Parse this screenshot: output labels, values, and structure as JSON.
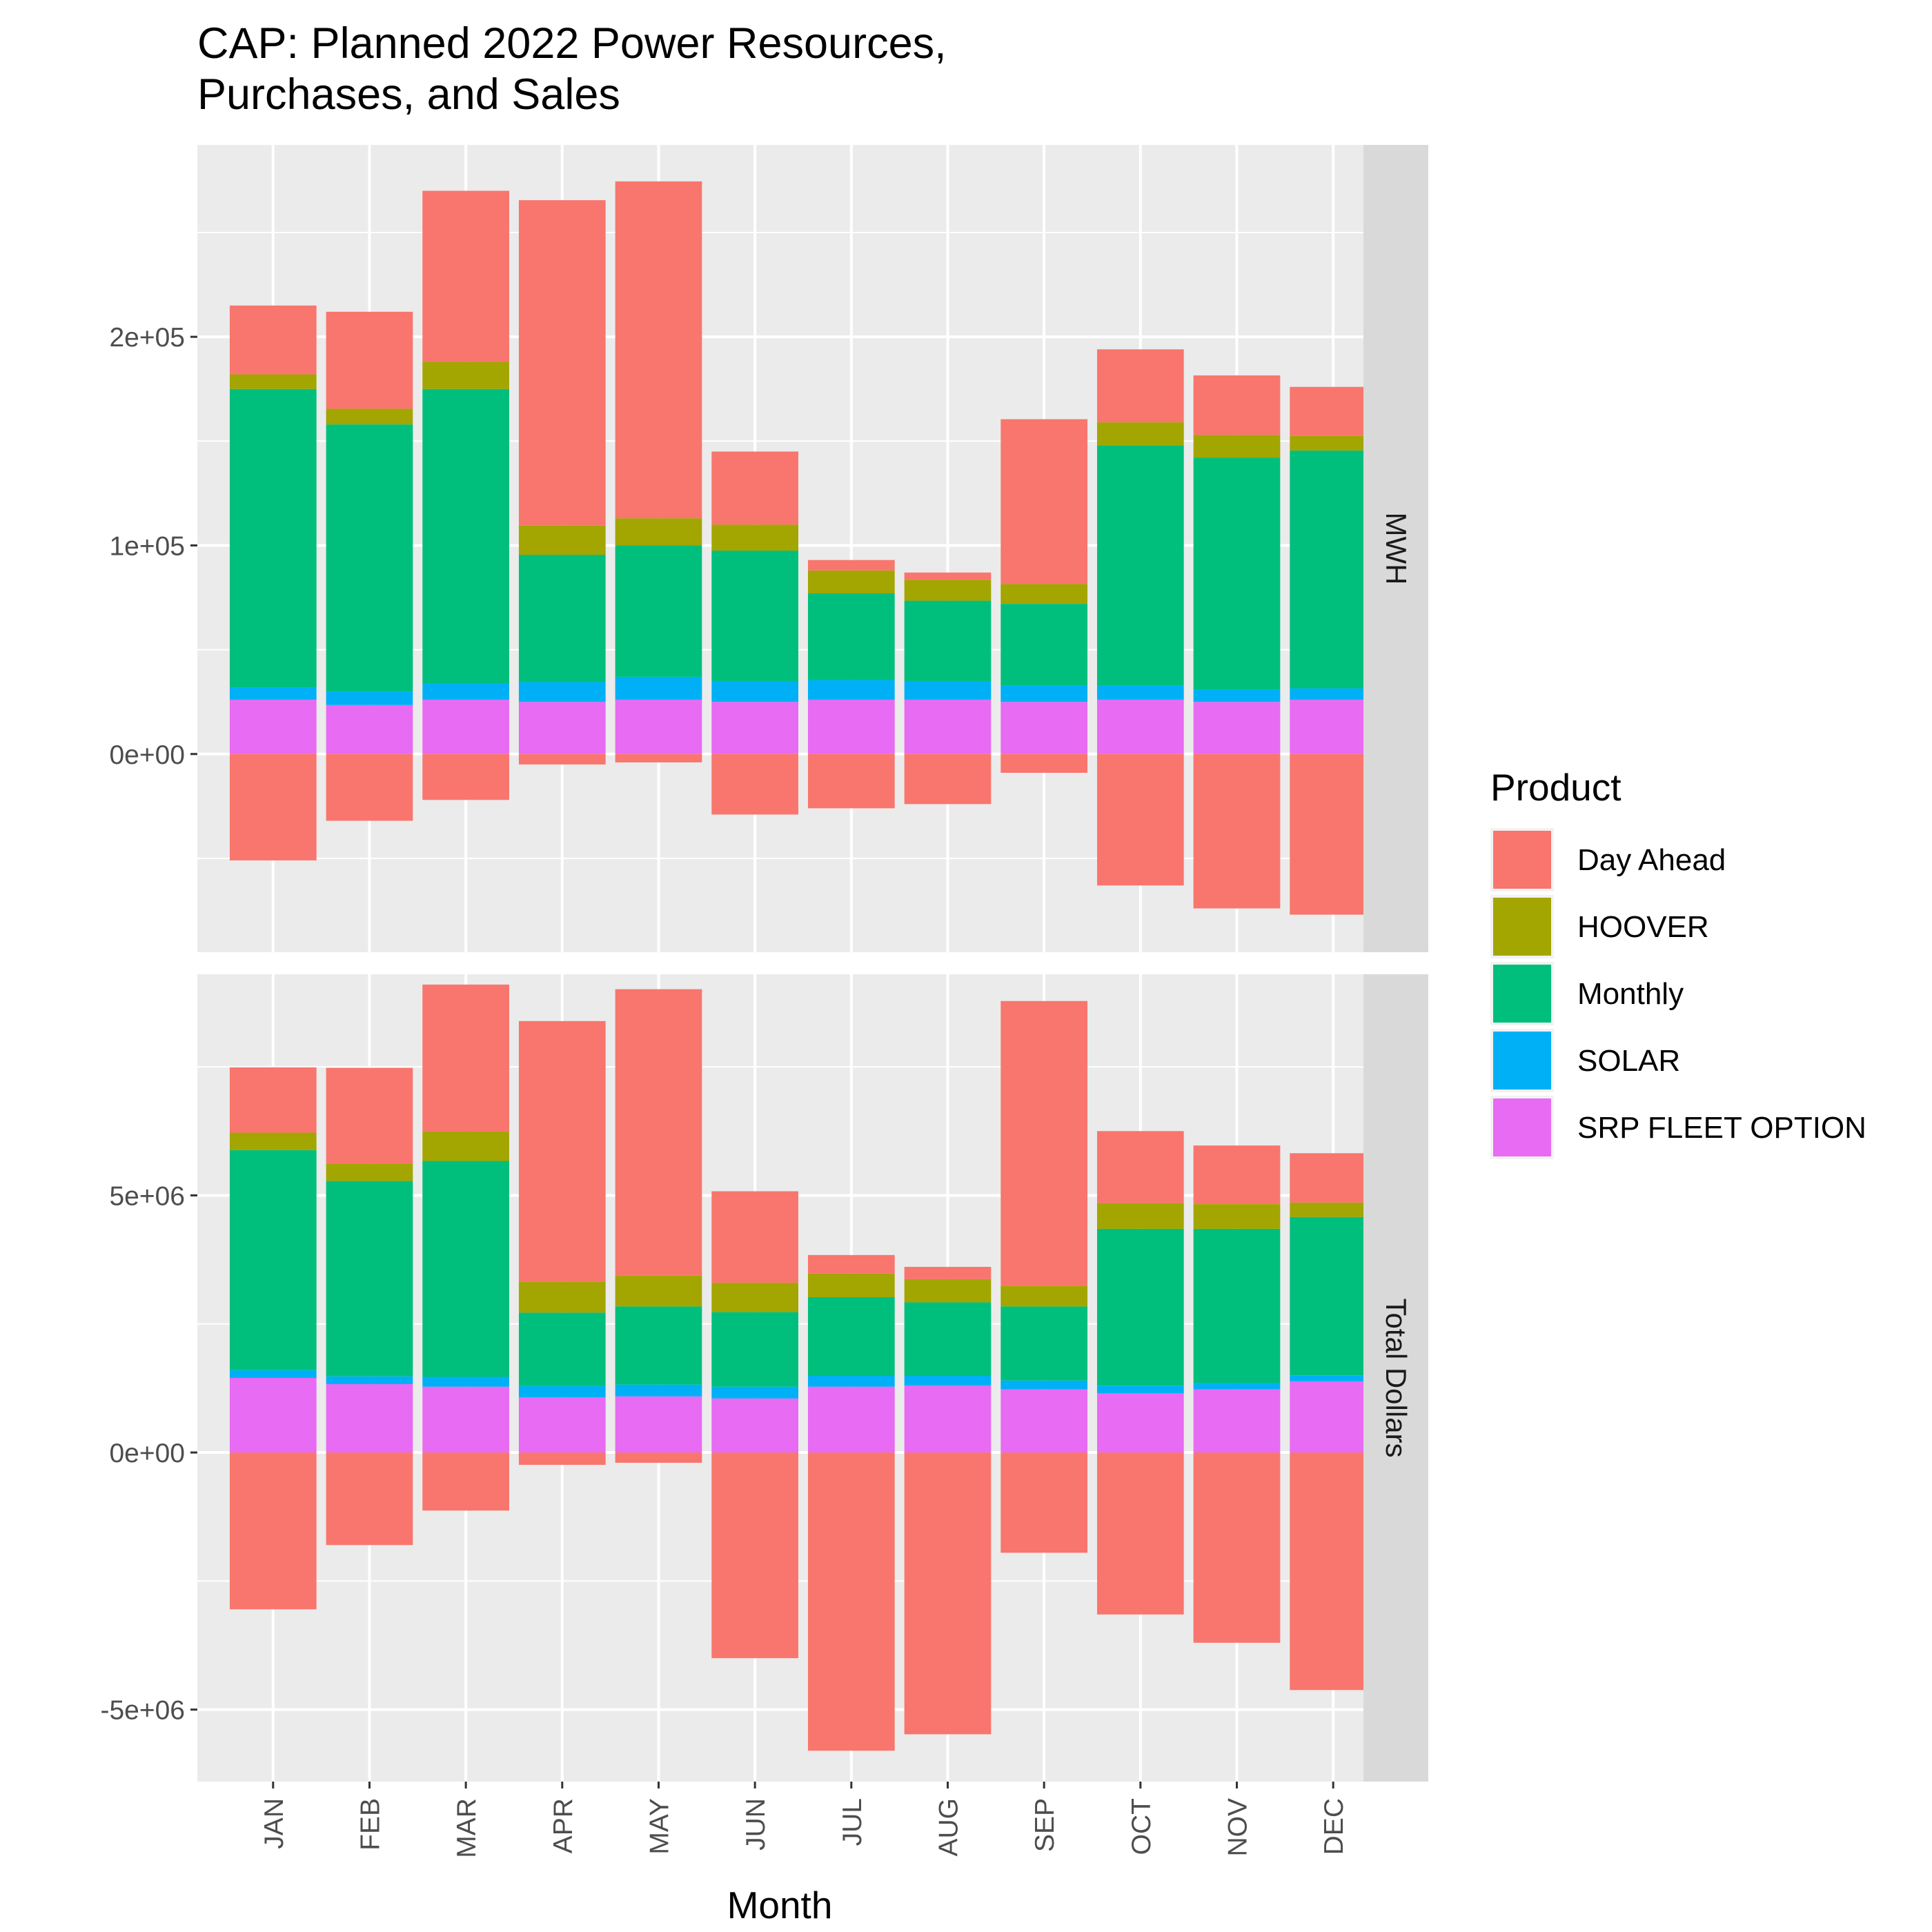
{
  "chart_data": {
    "type": "bar",
    "title": "CAP: Planned 2022 Power Resources,",
    "title_line2": "Purchases, and Sales",
    "xlabel": "Month",
    "ylabel": "",
    "stacked": true,
    "faceted": true,
    "grid": true,
    "legend_position": "right",
    "legend_title": "Product",
    "categories": [
      "JAN",
      "FEB",
      "MAR",
      "APR",
      "MAY",
      "JUN",
      "JUL",
      "AUG",
      "SEP",
      "OCT",
      "NOV",
      "DEC"
    ],
    "series": [
      {
        "name": "Day Ahead",
        "color": "#F8766D"
      },
      {
        "name": "HOOVER",
        "color": "#A3A500"
      },
      {
        "name": "Monthly",
        "color": "#00BF7D"
      },
      {
        "name": "SOLAR",
        "color": "#00B0F6"
      },
      {
        "name": "SRP FLEET OPTION",
        "color": "#E76BF3"
      }
    ],
    "facets": [
      {
        "label": "MWH",
        "ylim": [
          -95000,
          292000
        ],
        "yticks": [
          0,
          100000,
          200000
        ],
        "ytick_labels": [
          "0e+00",
          "1e+05",
          "2e+05"
        ],
        "values": {
          "SRP FLEET OPTION": [
            26000,
            23500,
            26000,
            25000,
            26000,
            25000,
            26000,
            26000,
            25000,
            26000,
            25000,
            26000
          ],
          "SOLAR": [
            6000,
            6500,
            8000,
            9500,
            11000,
            10000,
            9500,
            9000,
            8000,
            7000,
            6000,
            5500
          ],
          "Monthly": [
            143000,
            128000,
            141000,
            61000,
            63000,
            62500,
            41500,
            38500,
            39000,
            115000,
            111000,
            114000
          ],
          "HOOVER": [
            7000,
            7500,
            13000,
            14000,
            13000,
            12500,
            11000,
            10000,
            9500,
            11000,
            11000,
            7000
          ],
          "Day Ahead": [
            33000,
            46500,
            82000,
            156000,
            161500,
            35000,
            5000,
            3500,
            79000,
            35000,
            28500,
            23500
          ],
          "Day Ahead Sales": [
            -51000,
            -32000,
            -22000,
            -5000,
            -4000,
            -29000,
            -26000,
            -24000,
            -9000,
            -63000,
            -74000,
            -77000
          ]
        }
      },
      {
        "label": "Total Dollars",
        "ylim": [
          -6400000,
          9300000
        ],
        "yticks": [
          -5000000,
          0,
          5000000
        ],
        "ytick_labels": [
          "-5e+06",
          "0e+00",
          "5e+06"
        ],
        "values": {
          "SRP FLEET OPTION": [
            1450000,
            1330000,
            1280000,
            1070000,
            1090000,
            1050000,
            1280000,
            1300000,
            1230000,
            1150000,
            1230000,
            1380000
          ],
          "SOLAR": [
            150000,
            150000,
            190000,
            220000,
            230000,
            230000,
            210000,
            190000,
            170000,
            150000,
            120000,
            120000
          ],
          "Monthly": [
            4280000,
            3800000,
            4200000,
            1430000,
            1520000,
            1450000,
            1530000,
            1430000,
            1440000,
            3050000,
            3000000,
            3080000
          ],
          "HOOVER": [
            340000,
            340000,
            570000,
            600000,
            600000,
            570000,
            460000,
            450000,
            400000,
            500000,
            480000,
            280000
          ],
          "Day Ahead": [
            1270000,
            1860000,
            2860000,
            5070000,
            5570000,
            1780000,
            360000,
            240000,
            5540000,
            1400000,
            1140000,
            960000
          ],
          "Day Ahead Sales": [
            -3050000,
            -1800000,
            -1130000,
            -240000,
            -200000,
            -4000000,
            -5800000,
            -5480000,
            -1950000,
            -3150000,
            -3700000,
            -4620000
          ]
        }
      }
    ]
  }
}
